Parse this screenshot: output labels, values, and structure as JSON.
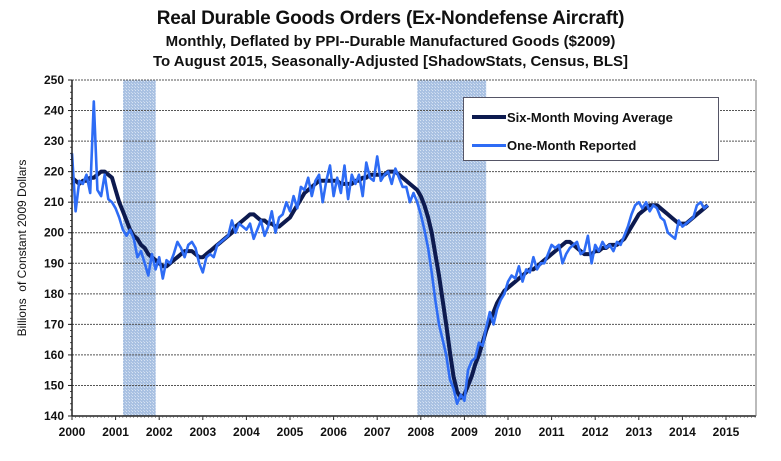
{
  "chart_data": {
    "type": "line",
    "title": "Real Durable Goods Orders (Ex-Nondefense Aircraft)",
    "subtitle": "Monthly, Deflated by PPI--Durable Manufactured Goods ($2009)",
    "subtitle2": "To August 2015, Seasonally-Adjusted [ShadowStats, Census, BLS]",
    "xlabel": "",
    "ylabel": "Billions  of Constant 2009 Dollars",
    "ylim": [
      140,
      250
    ],
    "yticks": [
      "140",
      "150",
      "160",
      "170",
      "180",
      "190",
      "200",
      "210",
      "220",
      "230",
      "240",
      "250"
    ],
    "xticks": [
      "2000",
      "2001",
      "2002",
      "2003",
      "2004",
      "2005",
      "2006",
      "2007",
      "2008",
      "2009",
      "2010",
      "2011",
      "2012",
      "2013",
      "2014",
      "2015"
    ],
    "x_start": "2000-01",
    "x_end": "2015-08",
    "grid": true,
    "legend_position": "top-right",
    "recessions": [
      {
        "start": 2001.17,
        "end": 2001.92
      },
      {
        "start": 2007.92,
        "end": 2009.5
      }
    ],
    "colors": {
      "six_month": "#0d1a4f",
      "one_month": "#2e6cf5",
      "recession": "#a8c0e0"
    },
    "series": [
      {
        "name": "Six-Month Moving Average",
        "values": [
          218,
          217,
          216,
          217,
          217,
          218,
          218,
          219,
          220,
          220,
          219,
          218,
          214,
          210,
          207,
          204,
          201,
          199,
          198,
          196,
          195,
          193,
          192,
          191,
          190,
          189,
          189,
          190,
          191,
          192,
          193,
          194,
          194,
          194,
          193,
          192,
          192,
          193,
          194,
          195,
          196,
          197,
          198,
          199,
          200,
          202,
          203,
          204,
          205,
          206,
          206,
          205,
          204,
          204,
          203,
          203,
          202,
          202,
          203,
          204,
          205,
          207,
          209,
          211,
          213,
          214,
          215,
          216,
          217,
          217,
          217,
          217,
          217,
          217,
          216,
          216,
          216,
          216,
          217,
          217,
          218,
          218,
          219,
          219,
          219,
          219,
          219,
          220,
          220,
          220,
          219,
          218,
          217,
          216,
          215,
          214,
          212,
          209,
          205,
          200,
          193,
          186,
          178,
          170,
          161,
          153,
          148,
          146,
          147,
          150,
          153,
          157,
          160,
          164,
          168,
          171,
          174,
          177,
          179,
          181,
          182,
          183,
          184,
          185,
          186,
          187,
          188,
          188,
          189,
          190,
          191,
          192,
          193,
          194,
          195,
          196,
          197,
          197,
          196,
          195,
          194,
          193,
          193,
          193,
          194,
          194,
          195,
          195,
          196,
          196,
          196,
          197,
          198,
          200,
          202,
          204,
          206,
          207,
          208,
          209,
          209,
          209,
          208,
          207,
          206,
          205,
          204,
          203,
          203,
          203,
          204,
          205,
          206,
          207,
          208,
          209
        ]
      },
      {
        "name": "One-Month Reported",
        "values": [
          226,
          207,
          217,
          216,
          219,
          213,
          243,
          214,
          212,
          219,
          211,
          210,
          208,
          205,
          201,
          199,
          201,
          198,
          192,
          194,
          190,
          186,
          193,
          188,
          192,
          185,
          191,
          190,
          193,
          197,
          195,
          192,
          196,
          197,
          195,
          190,
          187,
          192,
          193,
          192,
          196,
          197,
          198,
          199,
          204,
          200,
          203,
          202,
          201,
          203,
          198,
          201,
          204,
          199,
          202,
          207,
          200,
          205,
          206,
          210,
          207,
          212,
          208,
          215,
          214,
          218,
          212,
          217,
          219,
          210,
          217,
          222,
          212,
          218,
          213,
          222,
          211,
          219,
          216,
          219,
          212,
          223,
          218,
          217,
          225,
          217,
          219,
          220,
          216,
          221,
          218,
          215,
          215,
          210,
          213,
          210,
          206,
          201,
          195,
          187,
          178,
          170,
          165,
          160,
          152,
          149,
          144,
          147,
          145,
          155,
          158,
          159,
          164,
          163,
          169,
          174,
          170,
          175,
          178,
          180,
          184,
          186,
          185,
          189,
          184,
          188,
          187,
          192,
          188,
          190,
          190,
          193,
          196,
          195,
          196,
          190,
          193,
          195,
          196,
          197,
          193,
          194,
          199,
          190,
          196,
          194,
          197,
          195,
          196,
          194,
          197,
          196,
          199,
          202,
          206,
          209,
          210,
          208,
          210,
          207,
          209,
          208,
          205,
          204,
          200,
          199,
          198,
          204,
          202,
          203,
          204,
          205,
          209,
          210,
          208,
          209
        ]
      }
    ]
  },
  "legend": {
    "six_month_label": "Six-Month Moving Average",
    "one_month_label": "One-Month Reported"
  }
}
